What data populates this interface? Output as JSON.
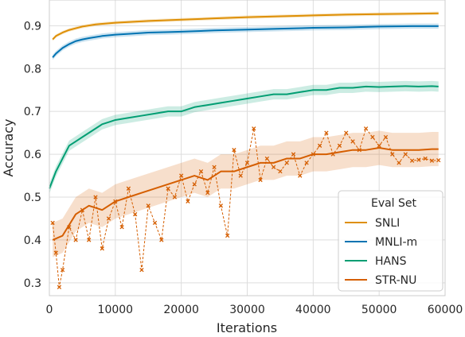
{
  "chart_data": {
    "type": "line",
    "xlabel": "Iterations",
    "ylabel": "Accuracy",
    "xlim": [
      0,
      60000
    ],
    "ylim": [
      0.27,
      0.96
    ],
    "xticks": [
      0,
      10000,
      20000,
      30000,
      40000,
      50000,
      60000
    ],
    "yticks": [
      0.3,
      0.4,
      0.5,
      0.6,
      0.7,
      0.8,
      0.9
    ],
    "grid": true,
    "legend": {
      "title": "Eval Set",
      "position": "lower-right"
    },
    "series": [
      {
        "name": "SNLI",
        "color": "#de8f05",
        "band": 0.004,
        "x": [
          500,
          1000,
          2000,
          3000,
          4000,
          5000,
          7000,
          10000,
          15000,
          20000,
          25000,
          30000,
          35000,
          40000,
          45000,
          50000,
          55000,
          59000
        ],
        "y": [
          0.868,
          0.876,
          0.884,
          0.89,
          0.894,
          0.898,
          0.903,
          0.907,
          0.911,
          0.914,
          0.917,
          0.92,
          0.922,
          0.924,
          0.926,
          0.927,
          0.928,
          0.929
        ]
      },
      {
        "name": "MNLI-m",
        "color": "#0173b2",
        "band": 0.006,
        "x": [
          500,
          1000,
          2000,
          3000,
          4000,
          5000,
          6000,
          8000,
          10000,
          12000,
          15000,
          18000,
          20000,
          25000,
          30000,
          35000,
          40000,
          45000,
          50000,
          55000,
          59000
        ],
        "y": [
          0.826,
          0.835,
          0.848,
          0.857,
          0.864,
          0.868,
          0.871,
          0.876,
          0.879,
          0.881,
          0.884,
          0.885,
          0.886,
          0.889,
          0.891,
          0.893,
          0.895,
          0.896,
          0.898,
          0.899,
          0.899
        ]
      },
      {
        "name": "HANS",
        "color": "#029e73",
        "band": 0.012,
        "x": [
          0,
          1000,
          2000,
          3000,
          4000,
          5000,
          6000,
          7000,
          8000,
          9000,
          10000,
          12000,
          14000,
          16000,
          18000,
          20000,
          22000,
          24000,
          26000,
          28000,
          30000,
          32000,
          34000,
          36000,
          38000,
          40000,
          42000,
          44000,
          46000,
          48000,
          50000,
          52000,
          54000,
          56000,
          58000,
          59000
        ],
        "y": [
          0.52,
          0.56,
          0.59,
          0.62,
          0.63,
          0.64,
          0.65,
          0.66,
          0.67,
          0.675,
          0.68,
          0.685,
          0.69,
          0.695,
          0.7,
          0.7,
          0.71,
          0.715,
          0.72,
          0.725,
          0.73,
          0.735,
          0.74,
          0.74,
          0.745,
          0.75,
          0.75,
          0.755,
          0.755,
          0.758,
          0.757,
          0.758,
          0.759,
          0.758,
          0.759,
          0.758
        ]
      },
      {
        "name": "STR-NU",
        "color": "#d55e00",
        "band": 0.04,
        "x": [
          500,
          2000,
          4000,
          6000,
          8000,
          10000,
          12000,
          14000,
          16000,
          18000,
          20000,
          22000,
          24000,
          26000,
          28000,
          30000,
          32000,
          34000,
          36000,
          38000,
          40000,
          42000,
          44000,
          46000,
          48000,
          50000,
          52000,
          54000,
          56000,
          58000,
          59000
        ],
        "y": [
          0.4,
          0.41,
          0.46,
          0.48,
          0.47,
          0.49,
          0.5,
          0.51,
          0.52,
          0.53,
          0.54,
          0.55,
          0.54,
          0.56,
          0.56,
          0.57,
          0.58,
          0.58,
          0.59,
          0.59,
          0.6,
          0.6,
          0.605,
          0.61,
          0.61,
          0.615,
          0.61,
          0.61,
          0.61,
          0.612,
          0.612
        ]
      },
      {
        "name": "STR-NU (per-eval)",
        "color": "#d55e00",
        "style": "dashed-x",
        "legend": false,
        "x": [
          500,
          1000,
          1500,
          2000,
          3000,
          4000,
          5000,
          6000,
          7000,
          8000,
          9000,
          10000,
          11000,
          12000,
          13000,
          14000,
          15000,
          16000,
          17000,
          18000,
          19000,
          20000,
          21000,
          22000,
          23000,
          24000,
          25000,
          26000,
          27000,
          28000,
          29000,
          30000,
          31000,
          32000,
          33000,
          34000,
          35000,
          36000,
          37000,
          38000,
          39000,
          40000,
          41000,
          42000,
          43000,
          44000,
          45000,
          46000,
          47000,
          48000,
          49000,
          50000,
          51000,
          52000,
          53000,
          54000,
          55000,
          56000,
          57000,
          58000,
          59000
        ],
        "y": [
          0.44,
          0.37,
          0.29,
          0.33,
          0.43,
          0.4,
          0.47,
          0.4,
          0.5,
          0.38,
          0.45,
          0.49,
          0.43,
          0.52,
          0.46,
          0.33,
          0.48,
          0.44,
          0.4,
          0.52,
          0.5,
          0.55,
          0.49,
          0.53,
          0.56,
          0.51,
          0.57,
          0.48,
          0.41,
          0.61,
          0.55,
          0.58,
          0.66,
          0.54,
          0.59,
          0.57,
          0.56,
          0.58,
          0.6,
          0.55,
          0.58,
          0.6,
          0.62,
          0.65,
          0.6,
          0.62,
          0.65,
          0.63,
          0.61,
          0.66,
          0.64,
          0.62,
          0.64,
          0.6,
          0.58,
          0.6,
          0.585,
          0.587,
          0.59,
          0.585,
          0.586
        ]
      }
    ]
  }
}
